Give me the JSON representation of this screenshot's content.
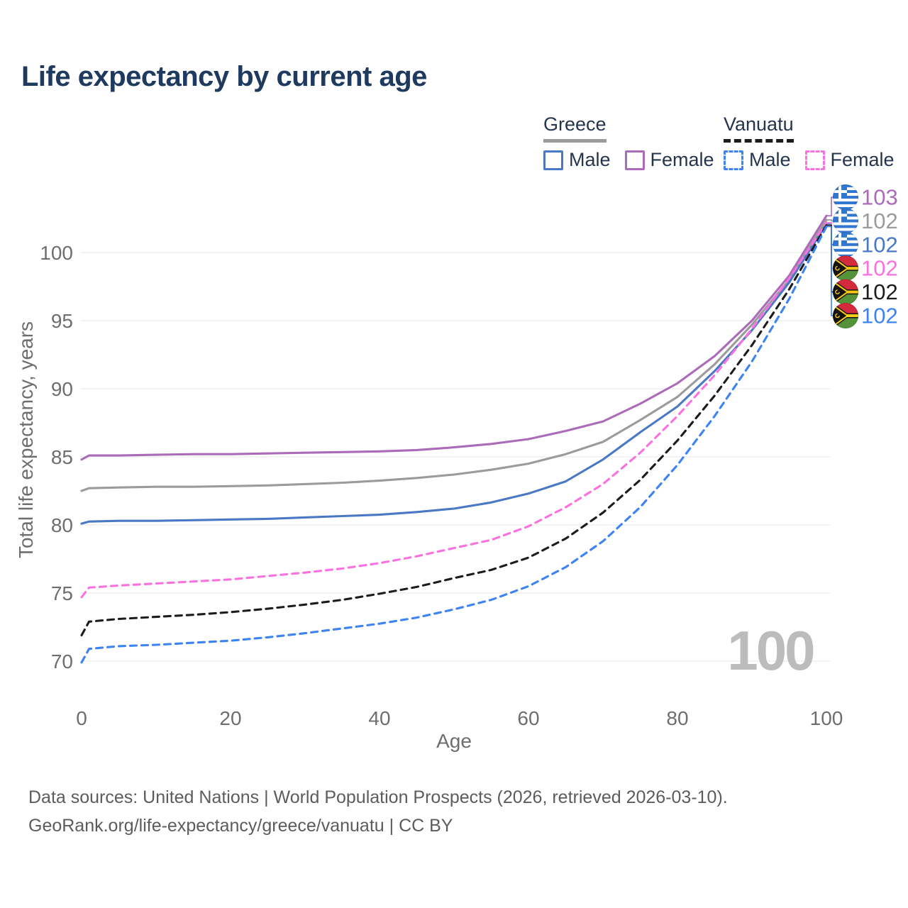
{
  "title": "Life expectancy by current age",
  "legend": {
    "groups": [
      {
        "country": "Greece",
        "items": [
          {
            "label": "Male"
          },
          {
            "label": "Female"
          }
        ]
      },
      {
        "country": "Vanuatu",
        "items": [
          {
            "label": "Male"
          },
          {
            "label": "Female"
          }
        ]
      }
    ]
  },
  "watermark": "100",
  "footer": {
    "line1": "Data sources: United Nations | World Population Prospects (2026, retrieved 2026-03-10).",
    "line2": "GeoRank.org/life-expectancy/greece/vanuatu | CC BY"
  },
  "chart_data": {
    "type": "line",
    "title": "Life expectancy by current age",
    "xlabel": "Age",
    "ylabel": "Total life expectancy, years",
    "xlim": [
      0,
      100
    ],
    "ylim": [
      68.5,
      103.5
    ],
    "x_ticks": [
      0,
      20,
      40,
      60,
      80,
      100
    ],
    "y_ticks": [
      70,
      75,
      80,
      85,
      90,
      95,
      100
    ],
    "grid": "horizontal",
    "legend_position": "top-right",
    "ages": [
      0,
      1,
      5,
      10,
      15,
      20,
      25,
      30,
      35,
      40,
      45,
      50,
      55,
      60,
      65,
      70,
      75,
      80,
      85,
      90,
      95,
      100
    ],
    "series": [
      {
        "id": "greece-female",
        "country": "Greece",
        "sex": "Female",
        "color": "#ab6bb8",
        "dashed": false,
        "end_label": "103",
        "flag": "greece",
        "values": [
          84.8,
          85.1,
          85.1,
          85.15,
          85.2,
          85.2,
          85.25,
          85.3,
          85.35,
          85.4,
          85.5,
          85.7,
          85.95,
          86.3,
          86.9,
          87.6,
          88.9,
          90.4,
          92.4,
          95.0,
          98.3,
          102.7
        ]
      },
      {
        "id": "greece-total",
        "country": "Greece",
        "sex": "Both sexes",
        "color": "#9b9b9b",
        "dashed": false,
        "end_label": "102",
        "flag": "greece",
        "values": [
          82.5,
          82.7,
          82.75,
          82.8,
          82.8,
          82.85,
          82.9,
          83.0,
          83.1,
          83.25,
          83.45,
          83.7,
          84.05,
          84.5,
          85.2,
          86.1,
          87.7,
          89.4,
          91.8,
          94.7,
          98.0,
          102.4
        ]
      },
      {
        "id": "greece-male",
        "country": "Greece",
        "sex": "Male",
        "color": "#4a79c4",
        "dashed": false,
        "end_label": "102",
        "flag": "greece",
        "values": [
          80.1,
          80.25,
          80.3,
          80.3,
          80.35,
          80.4,
          80.45,
          80.55,
          80.65,
          80.75,
          80.95,
          81.2,
          81.65,
          82.3,
          83.2,
          84.8,
          86.8,
          88.7,
          91.3,
          94.3,
          97.8,
          102.1
        ]
      },
      {
        "id": "vanuatu-female",
        "country": "Vanuatu",
        "sex": "Female",
        "color": "#fb71e0",
        "dashed": true,
        "end_label": "102",
        "flag": "vanuatu",
        "values": [
          74.7,
          75.4,
          75.55,
          75.7,
          75.85,
          76.0,
          76.25,
          76.5,
          76.8,
          77.2,
          77.7,
          78.3,
          78.9,
          79.9,
          81.3,
          83.0,
          85.3,
          88.0,
          91.0,
          94.4,
          98.1,
          102.2
        ]
      },
      {
        "id": "vanuatu-total",
        "country": "Vanuatu",
        "sex": "Both sexes",
        "color": "#1c1c1c",
        "dashed": true,
        "end_label": "102",
        "flag": "vanuatu",
        "values": [
          71.9,
          72.9,
          73.1,
          73.25,
          73.4,
          73.6,
          73.85,
          74.15,
          74.5,
          74.95,
          75.45,
          76.1,
          76.7,
          77.6,
          79.0,
          80.9,
          83.3,
          86.2,
          89.5,
          93.2,
          97.3,
          102.0
        ]
      },
      {
        "id": "vanuatu-male",
        "country": "Vanuatu",
        "sex": "Male",
        "color": "#3d83f2",
        "dashed": true,
        "end_label": "102",
        "flag": "vanuatu",
        "values": [
          69.9,
          70.9,
          71.1,
          71.2,
          71.35,
          71.5,
          71.75,
          72.05,
          72.4,
          72.75,
          73.2,
          73.8,
          74.5,
          75.5,
          76.9,
          78.8,
          81.3,
          84.4,
          88.0,
          92.0,
          96.6,
          101.9
        ]
      }
    ]
  }
}
